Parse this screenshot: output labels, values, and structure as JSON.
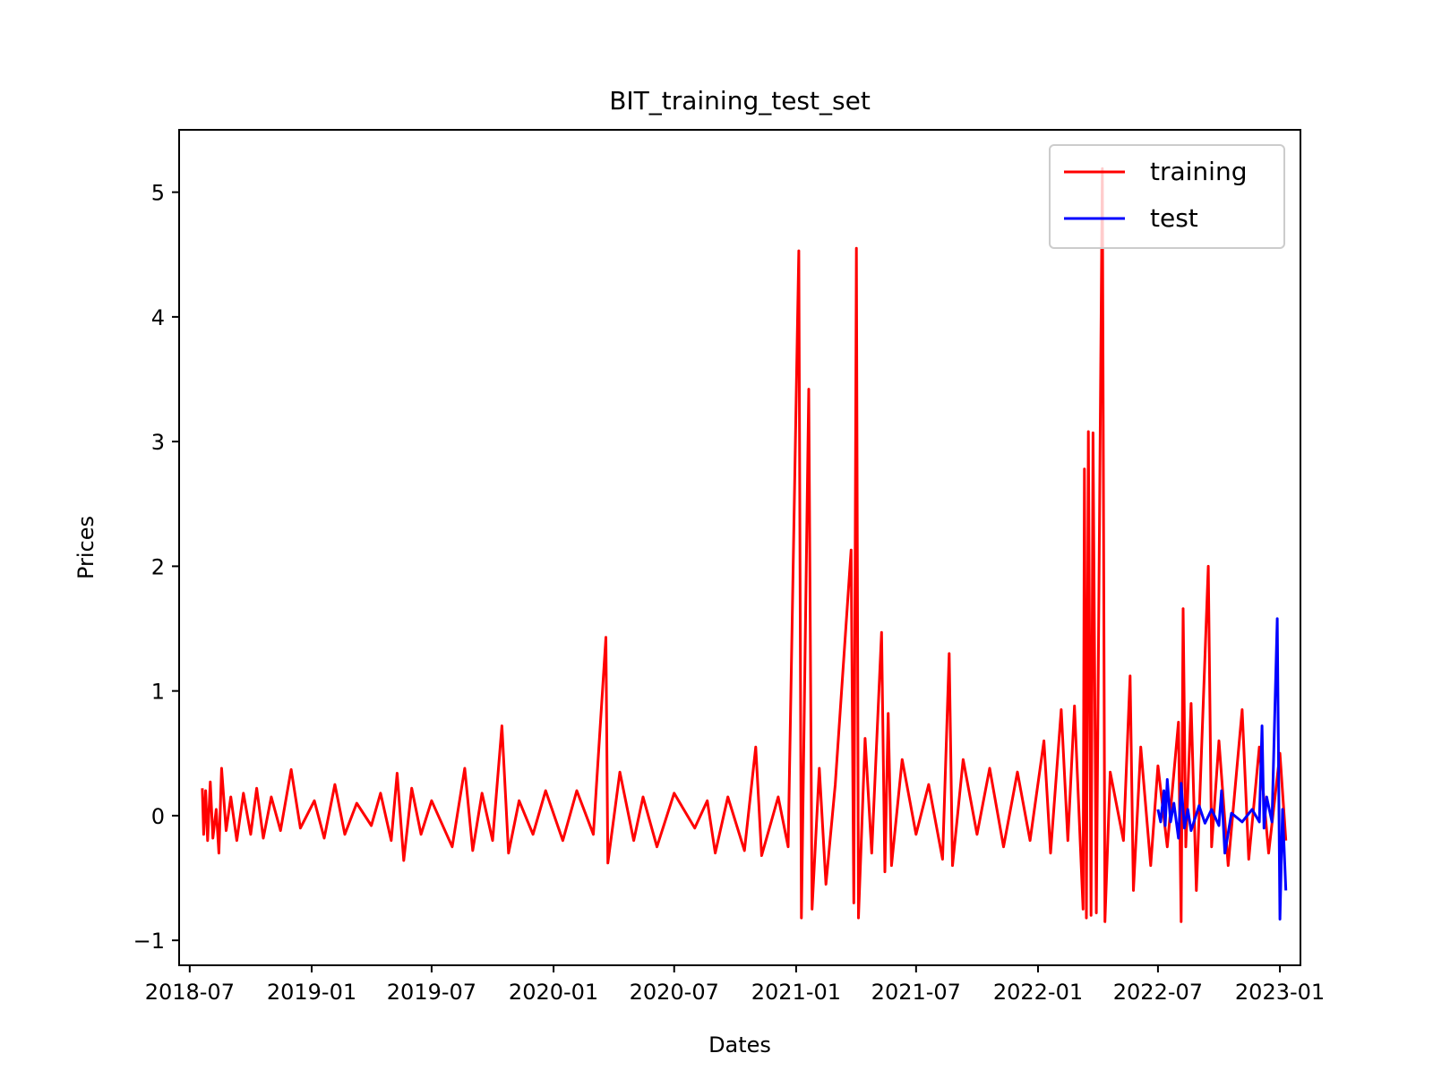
{
  "chart_data": {
    "type": "line",
    "title": "BIT_training_test_set",
    "xlabel": "Dates",
    "ylabel": "Prices",
    "x_type": "date",
    "xlim": [
      "2018-06-15",
      "2023-02-01"
    ],
    "ylim": [
      -1.2,
      5.5
    ],
    "x_ticks": [
      "2018-07",
      "2019-01",
      "2019-07",
      "2020-01",
      "2020-07",
      "2021-01",
      "2021-07",
      "2022-01",
      "2022-07",
      "2023-01"
    ],
    "y_ticks": [
      -1,
      0,
      1,
      2,
      3,
      4,
      5
    ],
    "y_tick_labels": [
      "−1",
      "0",
      "1",
      "2",
      "3",
      "4",
      "5"
    ],
    "legend_position": "top-right",
    "grid": false,
    "series": [
      {
        "name": "training",
        "color": "#ff0000",
        "points": [
          [
            "2018-07-20",
            0.22
          ],
          [
            "2018-07-22",
            -0.15
          ],
          [
            "2018-07-25",
            0.2
          ],
          [
            "2018-07-28",
            -0.2
          ],
          [
            "2018-08-01",
            0.27
          ],
          [
            "2018-08-05",
            -0.18
          ],
          [
            "2018-08-10",
            0.05
          ],
          [
            "2018-08-14",
            -0.3
          ],
          [
            "2018-08-18",
            0.38
          ],
          [
            "2018-08-25",
            -0.12
          ],
          [
            "2018-09-01",
            0.15
          ],
          [
            "2018-09-10",
            -0.2
          ],
          [
            "2018-09-20",
            0.18
          ],
          [
            "2018-10-01",
            -0.15
          ],
          [
            "2018-10-10",
            0.22
          ],
          [
            "2018-10-20",
            -0.18
          ],
          [
            "2018-11-01",
            0.15
          ],
          [
            "2018-11-15",
            -0.12
          ],
          [
            "2018-12-01",
            0.37
          ],
          [
            "2018-12-15",
            -0.1
          ],
          [
            "2019-01-05",
            0.12
          ],
          [
            "2019-01-20",
            -0.18
          ],
          [
            "2019-02-05",
            0.25
          ],
          [
            "2019-02-20",
            -0.15
          ],
          [
            "2019-03-10",
            0.1
          ],
          [
            "2019-04-01",
            -0.08
          ],
          [
            "2019-04-15",
            0.18
          ],
          [
            "2019-05-01",
            -0.2
          ],
          [
            "2019-05-10",
            0.34
          ],
          [
            "2019-05-20",
            -0.36
          ],
          [
            "2019-06-01",
            0.22
          ],
          [
            "2019-06-15",
            -0.15
          ],
          [
            "2019-07-01",
            0.12
          ],
          [
            "2019-08-01",
            -0.25
          ],
          [
            "2019-08-20",
            0.38
          ],
          [
            "2019-09-01",
            -0.28
          ],
          [
            "2019-09-15",
            0.18
          ],
          [
            "2019-10-01",
            -0.2
          ],
          [
            "2019-10-15",
            0.72
          ],
          [
            "2019-10-25",
            -0.3
          ],
          [
            "2019-11-10",
            0.12
          ],
          [
            "2019-12-01",
            -0.15
          ],
          [
            "2019-12-20",
            0.2
          ],
          [
            "2020-01-15",
            -0.2
          ],
          [
            "2020-02-05",
            0.2
          ],
          [
            "2020-03-01",
            -0.15
          ],
          [
            "2020-03-20",
            1.43
          ],
          [
            "2020-03-23",
            -0.38
          ],
          [
            "2020-04-10",
            0.35
          ],
          [
            "2020-05-01",
            -0.2
          ],
          [
            "2020-05-15",
            0.15
          ],
          [
            "2020-06-05",
            -0.25
          ],
          [
            "2020-07-01",
            0.18
          ],
          [
            "2020-08-01",
            -0.1
          ],
          [
            "2020-08-20",
            0.12
          ],
          [
            "2020-09-01",
            -0.3
          ],
          [
            "2020-09-20",
            0.15
          ],
          [
            "2020-10-15",
            -0.28
          ],
          [
            "2020-11-01",
            0.55
          ],
          [
            "2020-11-10",
            -0.32
          ],
          [
            "2020-12-05",
            0.15
          ],
          [
            "2020-12-20",
            -0.25
          ],
          [
            "2021-01-05",
            4.53
          ],
          [
            "2021-01-09",
            -0.82
          ],
          [
            "2021-01-20",
            3.42
          ],
          [
            "2021-01-25",
            -0.75
          ],
          [
            "2021-02-05",
            0.38
          ],
          [
            "2021-02-15",
            -0.55
          ],
          [
            "2021-03-01",
            0.25
          ],
          [
            "2021-03-25",
            2.13
          ],
          [
            "2021-03-29",
            -0.7
          ],
          [
            "2021-04-02",
            4.55
          ],
          [
            "2021-04-05",
            -0.82
          ],
          [
            "2021-04-15",
            0.62
          ],
          [
            "2021-04-25",
            -0.3
          ],
          [
            "2021-05-10",
            1.47
          ],
          [
            "2021-05-15",
            -0.45
          ],
          [
            "2021-05-20",
            0.82
          ],
          [
            "2021-05-25",
            -0.4
          ],
          [
            "2021-06-10",
            0.45
          ],
          [
            "2021-07-01",
            -0.15
          ],
          [
            "2021-07-20",
            0.25
          ],
          [
            "2021-08-10",
            -0.35
          ],
          [
            "2021-08-20",
            1.3
          ],
          [
            "2021-08-25",
            -0.4
          ],
          [
            "2021-09-10",
            0.45
          ],
          [
            "2021-10-01",
            -0.15
          ],
          [
            "2021-10-20",
            0.38
          ],
          [
            "2021-11-10",
            -0.25
          ],
          [
            "2021-12-01",
            0.35
          ],
          [
            "2021-12-20",
            -0.2
          ],
          [
            "2022-01-10",
            0.6
          ],
          [
            "2022-01-20",
            -0.3
          ],
          [
            "2022-02-05",
            0.85
          ],
          [
            "2022-02-15",
            -0.2
          ],
          [
            "2022-02-25",
            0.88
          ],
          [
            "2022-03-10",
            -0.75
          ],
          [
            "2022-03-12",
            2.78
          ],
          [
            "2022-03-15",
            -0.82
          ],
          [
            "2022-03-18",
            3.08
          ],
          [
            "2022-03-22",
            -0.8
          ],
          [
            "2022-03-25",
            3.07
          ],
          [
            "2022-03-30",
            -0.78
          ],
          [
            "2022-04-08",
            5.19
          ],
          [
            "2022-04-12",
            -0.85
          ],
          [
            "2022-04-20",
            0.35
          ],
          [
            "2022-05-10",
            -0.2
          ],
          [
            "2022-05-20",
            1.12
          ],
          [
            "2022-05-25",
            -0.6
          ],
          [
            "2022-06-05",
            0.55
          ],
          [
            "2022-06-20",
            -0.4
          ],
          [
            "2022-07-01",
            0.4
          ],
          [
            "2022-07-15",
            -0.25
          ],
          [
            "2022-08-01",
            0.75
          ],
          [
            "2022-08-05",
            -0.85
          ],
          [
            "2022-08-08",
            1.66
          ],
          [
            "2022-08-12",
            -0.25
          ],
          [
            "2022-08-20",
            0.9
          ],
          [
            "2022-08-28",
            -0.6
          ],
          [
            "2022-09-15",
            2.0
          ],
          [
            "2022-09-20",
            -0.25
          ],
          [
            "2022-10-01",
            0.6
          ],
          [
            "2022-10-15",
            -0.4
          ],
          [
            "2022-11-05",
            0.85
          ],
          [
            "2022-11-15",
            -0.35
          ],
          [
            "2022-12-01",
            0.55
          ],
          [
            "2022-12-15",
            -0.3
          ],
          [
            "2023-01-01",
            0.5
          ],
          [
            "2023-01-10",
            -0.2
          ]
        ]
      },
      {
        "name": "test",
        "color": "#0000ff",
        "points": [
          [
            "2022-07-01",
            0.05
          ],
          [
            "2022-07-05",
            -0.05
          ],
          [
            "2022-07-10",
            0.2
          ],
          [
            "2022-07-12",
            -0.08
          ],
          [
            "2022-07-15",
            0.29
          ],
          [
            "2022-07-20",
            -0.05
          ],
          [
            "2022-07-25",
            0.1
          ],
          [
            "2022-08-01",
            -0.18
          ],
          [
            "2022-08-05",
            0.26
          ],
          [
            "2022-08-10",
            -0.1
          ],
          [
            "2022-08-15",
            0.05
          ],
          [
            "2022-08-20",
            -0.12
          ],
          [
            "2022-09-01",
            0.08
          ],
          [
            "2022-09-10",
            -0.06
          ],
          [
            "2022-09-20",
            0.05
          ],
          [
            "2022-10-01",
            -0.08
          ],
          [
            "2022-10-05",
            0.2
          ],
          [
            "2022-10-10",
            -0.3
          ],
          [
            "2022-10-20",
            0.02
          ],
          [
            "2022-11-05",
            -0.05
          ],
          [
            "2022-11-20",
            0.05
          ],
          [
            "2022-12-01",
            -0.05
          ],
          [
            "2022-12-05",
            0.72
          ],
          [
            "2022-12-08",
            -0.1
          ],
          [
            "2022-12-12",
            0.15
          ],
          [
            "2022-12-20",
            -0.05
          ],
          [
            "2022-12-28",
            1.58
          ],
          [
            "2023-01-01",
            -0.83
          ],
          [
            "2023-01-05",
            0.05
          ],
          [
            "2023-01-10",
            -0.6
          ]
        ]
      }
    ]
  }
}
